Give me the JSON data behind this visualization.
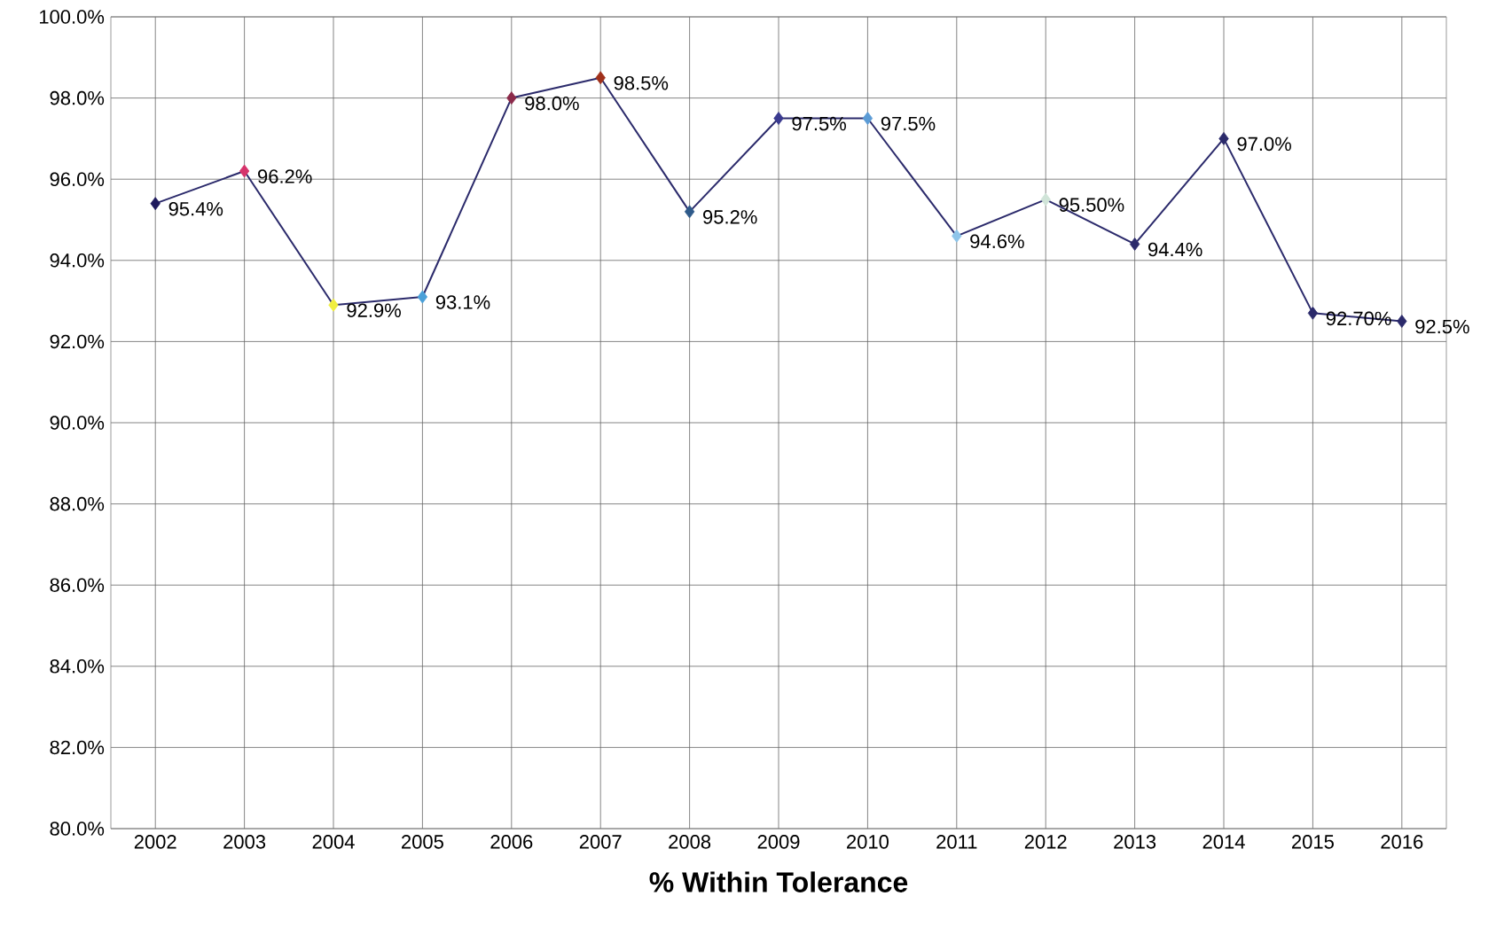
{
  "chart_data": {
    "type": "line",
    "xlabel": "**% Within Tolerance**",
    "categories": [
      "2002",
      "2003",
      "2004",
      "2005",
      "2006",
      "2007",
      "2008",
      "2009",
      "2010",
      "2011",
      "2012",
      "2013",
      "2014",
      "2015",
      "2016"
    ],
    "values": [
      95.4,
      96.2,
      92.9,
      93.1,
      98.0,
      98.5,
      95.2,
      97.5,
      97.5,
      94.6,
      95.5,
      94.4,
      97.0,
      92.7,
      92.5
    ],
    "colors": [
      "#1f1a5e",
      "#d6336b",
      "#f0ee40",
      "#4aa0d8",
      "#8b2a4a",
      "#a0301a",
      "#2e5a8a",
      "#3a3a8f",
      "#5b9bd5",
      "#8ec5ea",
      "#d0e4d8",
      "#2b2a6b",
      "#2b2a6b",
      "#2b2a6b",
      "#2b2a6b"
    ],
    "value_labels": [
      "95.4%",
      "96.2%",
      "92.9%",
      "93.1%",
      "98.0%",
      "98.5%",
      "95.2%",
      "97.5%",
      "97.5%",
      "94.6%",
      "95.50%",
      "94.4%",
      "97.0%",
      "92.70%",
      "92.5%"
    ],
    "ylim": [
      80,
      100
    ],
    "yticks": [
      {
        "value": 80,
        "label": "80.0%"
      },
      {
        "value": 82,
        "label": "82.0%"
      },
      {
        "value": 84,
        "label": "84.0%"
      },
      {
        "value": 86,
        "label": "86.0%"
      },
      {
        "value": 88,
        "label": "88.0%"
      },
      {
        "value": 90,
        "label": "90.0%"
      },
      {
        "value": 92,
        "label": "92.0%"
      },
      {
        "value": 94,
        "label": "94.0%"
      },
      {
        "value": 96,
        "label": "96.0%"
      },
      {
        "value": 98,
        "label": "98.0%"
      },
      {
        "value": 100,
        "label": "100.0%"
      }
    ],
    "color": "#2b2a6b",
    "grid": true,
    "marker": "diamond",
    "line_style": "solid"
  }
}
